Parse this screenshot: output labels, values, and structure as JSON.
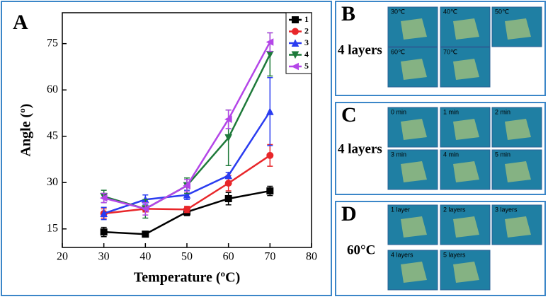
{
  "chart_data": {
    "type": "line",
    "panel_label": "A",
    "x_label": "Temperature (ºC)",
    "y_label": "Angle (º)",
    "x": [
      30,
      40,
      50,
      60,
      70
    ],
    "xlim": [
      20,
      80
    ],
    "xticks": [
      20,
      30,
      40,
      50,
      60,
      70,
      80
    ],
    "ylim": [
      9,
      85
    ],
    "yticks": [
      15,
      30,
      45,
      60,
      75
    ],
    "legend": "upper right",
    "series": [
      {
        "name": "1",
        "color": "#000000",
        "marker": "square",
        "values": [
          14,
          13.3,
          20.5,
          24.8,
          27.3
        ],
        "errors": [
          1.5,
          0.7,
          1.2,
          2,
          1.5
        ]
      },
      {
        "name": "2",
        "color": "#e8262a",
        "marker": "circle",
        "values": [
          20,
          21.5,
          21.3,
          29.8,
          38.8
        ],
        "errors": [
          1.5,
          1,
          1,
          2.5,
          3.5
        ]
      },
      {
        "name": "3",
        "color": "#2a3cf0",
        "marker": "triangle-up",
        "values": [
          20,
          24.5,
          26,
          32.3,
          53
        ],
        "errors": [
          2,
          1.5,
          1.5,
          1,
          11
        ]
      },
      {
        "name": "4",
        "color": "#1e7a3a",
        "marker": "triangle-down",
        "values": [
          25.5,
          21.5,
          29,
          44.5,
          71.5
        ],
        "errors": [
          2,
          3,
          2.5,
          9,
          7
        ]
      },
      {
        "name": "5",
        "color": "#b446e8",
        "marker": "triangle-left",
        "values": [
          25,
          21.5,
          29,
          50.5,
          75.5
        ],
        "errors": [
          1.5,
          2,
          2,
          3,
          3
        ]
      }
    ]
  },
  "panels": [
    {
      "letter": "B",
      "side_label": "4 layers",
      "images": [
        "30℃",
        "40℃",
        "50℃",
        "60℃",
        "70℃"
      ]
    },
    {
      "letter": "C",
      "side_label": "4 layers",
      "images": [
        "0 min",
        "1 min",
        "2 min",
        "3 min",
        "4 min",
        "5 min"
      ]
    },
    {
      "letter": "D",
      "side_label": "60°C",
      "images": [
        "1 layer",
        "2 layers",
        "3 layers",
        "4 layers",
        "5 layers"
      ]
    }
  ]
}
